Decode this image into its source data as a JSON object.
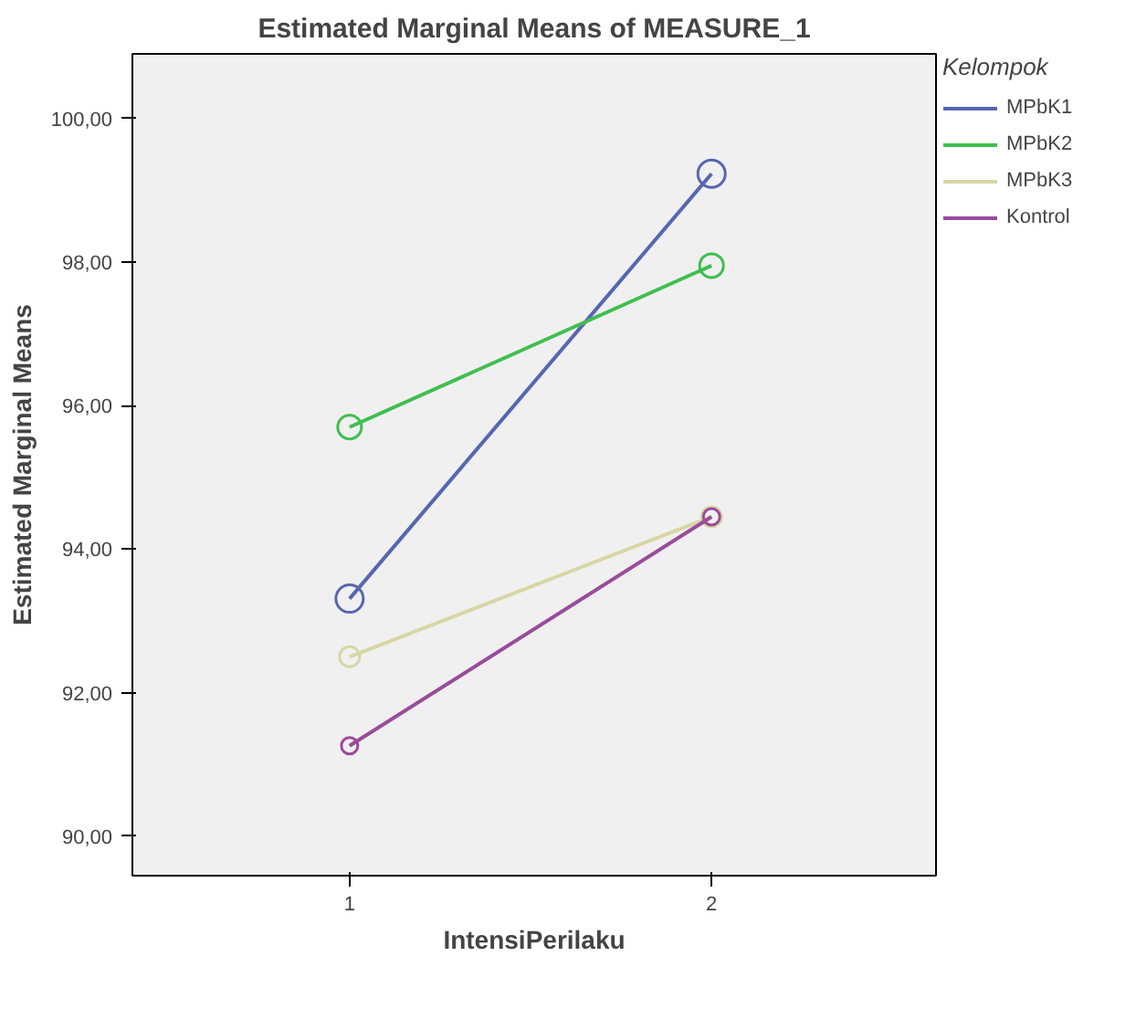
{
  "chart_data": {
    "type": "line",
    "title": "Estimated Marginal Means of MEASURE_1",
    "xlabel": "IntensiPerilaku",
    "ylabel": "Estimated Marginal Means",
    "legend_title": "Kelompok",
    "x": [
      1,
      2
    ],
    "series": [
      {
        "name": "MPbK1",
        "color": "#5766b0",
        "values": [
          93.31,
          99.23
        ]
      },
      {
        "name": "MPbK2",
        "color": "#3fbf4f",
        "values": [
          95.7,
          97.95
        ]
      },
      {
        "name": "MPbK3",
        "color": "#d8d6a4",
        "values": [
          92.5,
          94.45
        ]
      },
      {
        "name": "Kontrol",
        "color": "#9a4b9a",
        "values": [
          91.26,
          94.45
        ]
      }
    ],
    "xlim": [
      0.4,
      2.62
    ],
    "xticks": [
      1,
      2
    ],
    "ylim": [
      89.45,
      100.9
    ],
    "yticks": [
      {
        "value": 90,
        "label": "90,00"
      },
      {
        "value": 92,
        "label": "92,00"
      },
      {
        "value": 94,
        "label": "94,00"
      },
      {
        "value": 96,
        "label": "96,00"
      },
      {
        "value": 98,
        "label": "98,00"
      },
      {
        "value": 100,
        "label": "100,00"
      }
    ],
    "marker": "circle",
    "line_style": "solid",
    "grid": false,
    "legend": "right"
  }
}
